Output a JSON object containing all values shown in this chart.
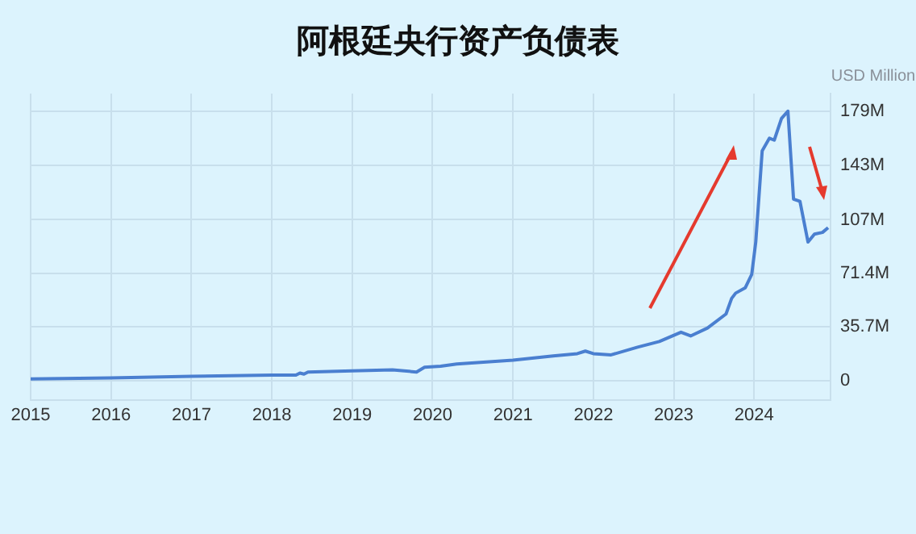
{
  "chart_data": {
    "type": "line",
    "title": "阿根廷央行资产负债表",
    "ylabel": "USD Million",
    "x": [
      2015.0,
      2016.0,
      2017.0,
      2018.0,
      2018.3,
      2018.35,
      2018.4,
      2018.45,
      2019.0,
      2019.5,
      2019.8,
      2019.9,
      2020.1,
      2020.3,
      2021.0,
      2021.5,
      2021.8,
      2021.9,
      2022.0,
      2022.22,
      2022.55,
      2022.82,
      2023.09,
      2023.21,
      2023.42,
      2023.65,
      2023.72,
      2023.77,
      2023.89,
      2023.97,
      2024.02,
      2024.1,
      2024.19,
      2024.25,
      2024.34,
      2024.42,
      2024.49,
      2024.57,
      2024.67,
      2024.75,
      2024.85,
      2024.92
    ],
    "series": [
      {
        "color": "#4a7fd0",
        "values": [
          1.1,
          1.8,
          2.9,
          3.6,
          3.6,
          5,
          4.3,
          5.7,
          6.4,
          7.1,
          5.7,
          8.9,
          9.6,
          11,
          13.6,
          16.4,
          17.9,
          19.6,
          17.9,
          17.1,
          22.2,
          26,
          32.2,
          29.7,
          35,
          44.3,
          54.7,
          58.2,
          61.8,
          70.7,
          92.2,
          152.9,
          161.3,
          160,
          174.4,
          179.3,
          120.8,
          119.2,
          92.2,
          97.5,
          98.6,
          101.8
        ]
      }
    ],
    "xlim": [
      2015,
      2024.95
    ],
    "xticks": [
      2015,
      2016,
      2017,
      2018,
      2019,
      2020,
      2021,
      2022,
      2023,
      2024
    ],
    "ylim": [
      -13,
      191
    ],
    "yticks": [
      0,
      {
        "value": 35.7,
        "label": "35.7M"
      },
      {
        "value": 71.4,
        "label": "71.4M"
      },
      {
        "value": 107,
        "label": "107M"
      },
      {
        "value": 143,
        "label": "143M"
      },
      {
        "value": 179,
        "label": "179M"
      }
    ],
    "grid": true,
    "marker": "none",
    "line_style": "solid"
  }
}
